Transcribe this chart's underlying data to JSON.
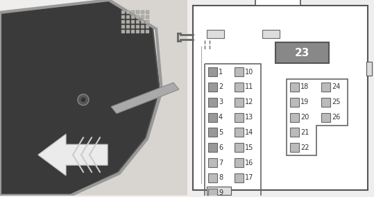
{
  "bg_color": "#f0eeec",
  "border_color": "#888888",
  "fuse_color": "#aaaaaa",
  "fuse_dark": "#888888",
  "fuse23_color": "#999999",
  "text_color": "#333333",
  "col1_fuses": [
    "1",
    "2",
    "3",
    "4",
    "5",
    "6",
    "7",
    "8",
    "9"
  ],
  "col2_fuses": [
    "10",
    "11",
    "12",
    "13",
    "14",
    "15",
    "16",
    "17"
  ],
  "col3_fuses": [
    "18",
    "19",
    "20",
    "21",
    "22"
  ],
  "col4_fuses": [
    "24",
    "25",
    "26"
  ],
  "relay23": "23",
  "left_panel_bg": "#555555",
  "arrow_color": "#ffffff"
}
